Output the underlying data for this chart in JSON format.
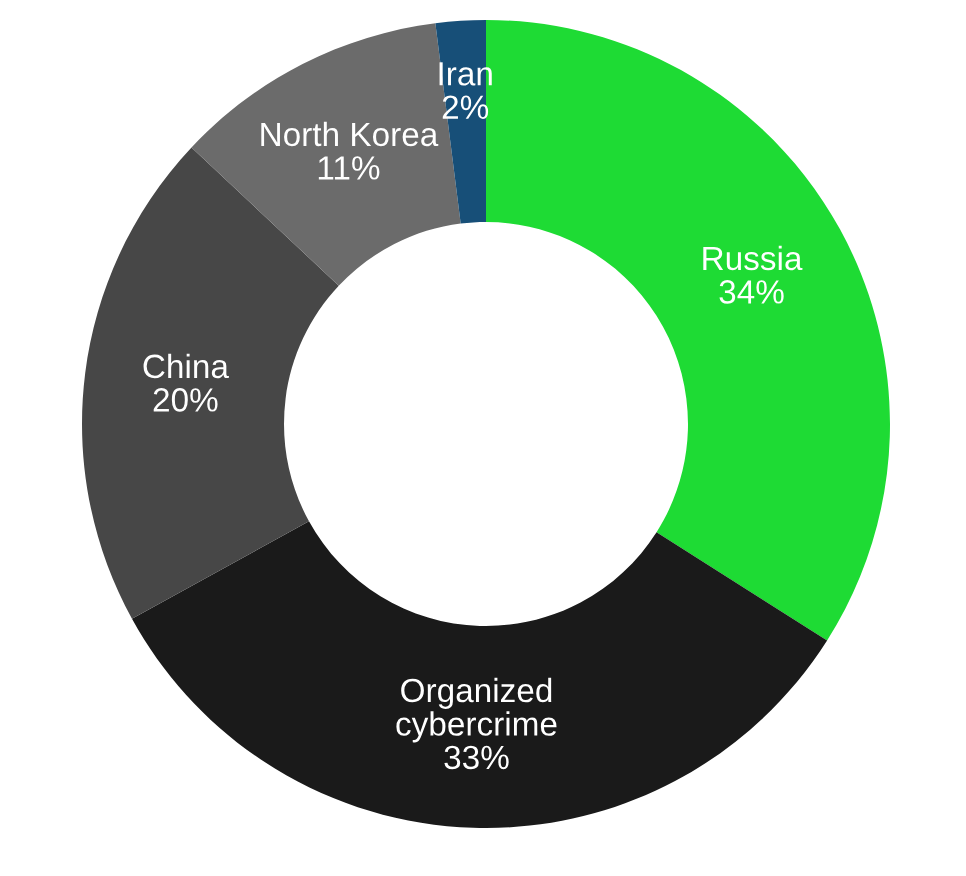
{
  "chart_data": {
    "type": "donut",
    "categories": [
      "Russia",
      "Organized\ncybercrime",
      "China",
      "North Korea",
      "Iran"
    ],
    "values": [
      34,
      33,
      20,
      11,
      2
    ],
    "value_labels": [
      "34%",
      "33%",
      "20%",
      "11%",
      "2%"
    ],
    "colors": [
      "#1edb34",
      "#1a1a1a",
      "#474747",
      "#6b6b6b",
      "#174f78"
    ],
    "legend": false
  }
}
